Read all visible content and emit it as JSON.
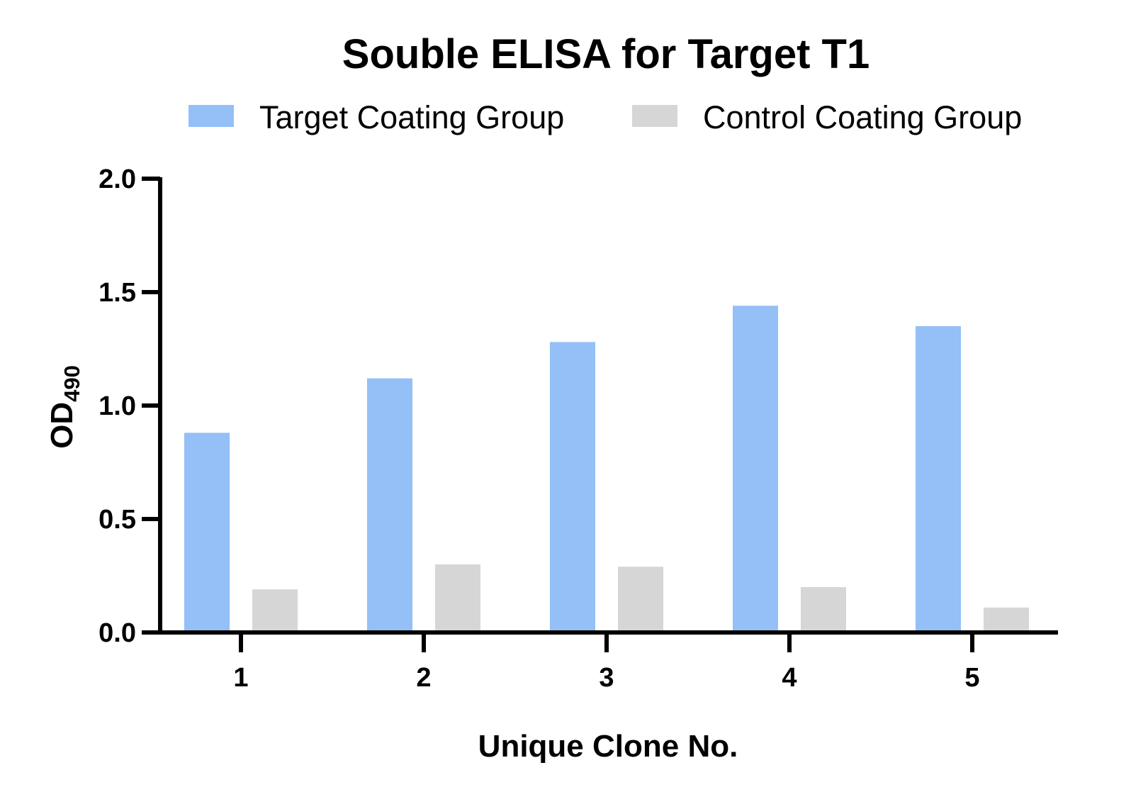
{
  "chart_data": {
    "type": "bar",
    "title": "Souble ELISA for Target T1",
    "xlabel": "Unique Clone No.",
    "ylabel_main": "OD",
    "ylabel_sub": "490",
    "categories": [
      "1",
      "2",
      "3",
      "4",
      "5"
    ],
    "series": [
      {
        "name": "Target Coating Group",
        "color": "#94bff7",
        "values": [
          0.88,
          1.12,
          1.28,
          1.44,
          1.35
        ]
      },
      {
        "name": "Control Coating Group",
        "color": "#d6d6d6",
        "values": [
          0.19,
          0.3,
          0.29,
          0.2,
          0.11
        ]
      }
    ],
    "ylim": [
      0,
      2.0
    ],
    "yticks": [
      "0.0",
      "0.5",
      "1.0",
      "1.5",
      "2.0"
    ],
    "grid": false,
    "legend_position": "top"
  }
}
